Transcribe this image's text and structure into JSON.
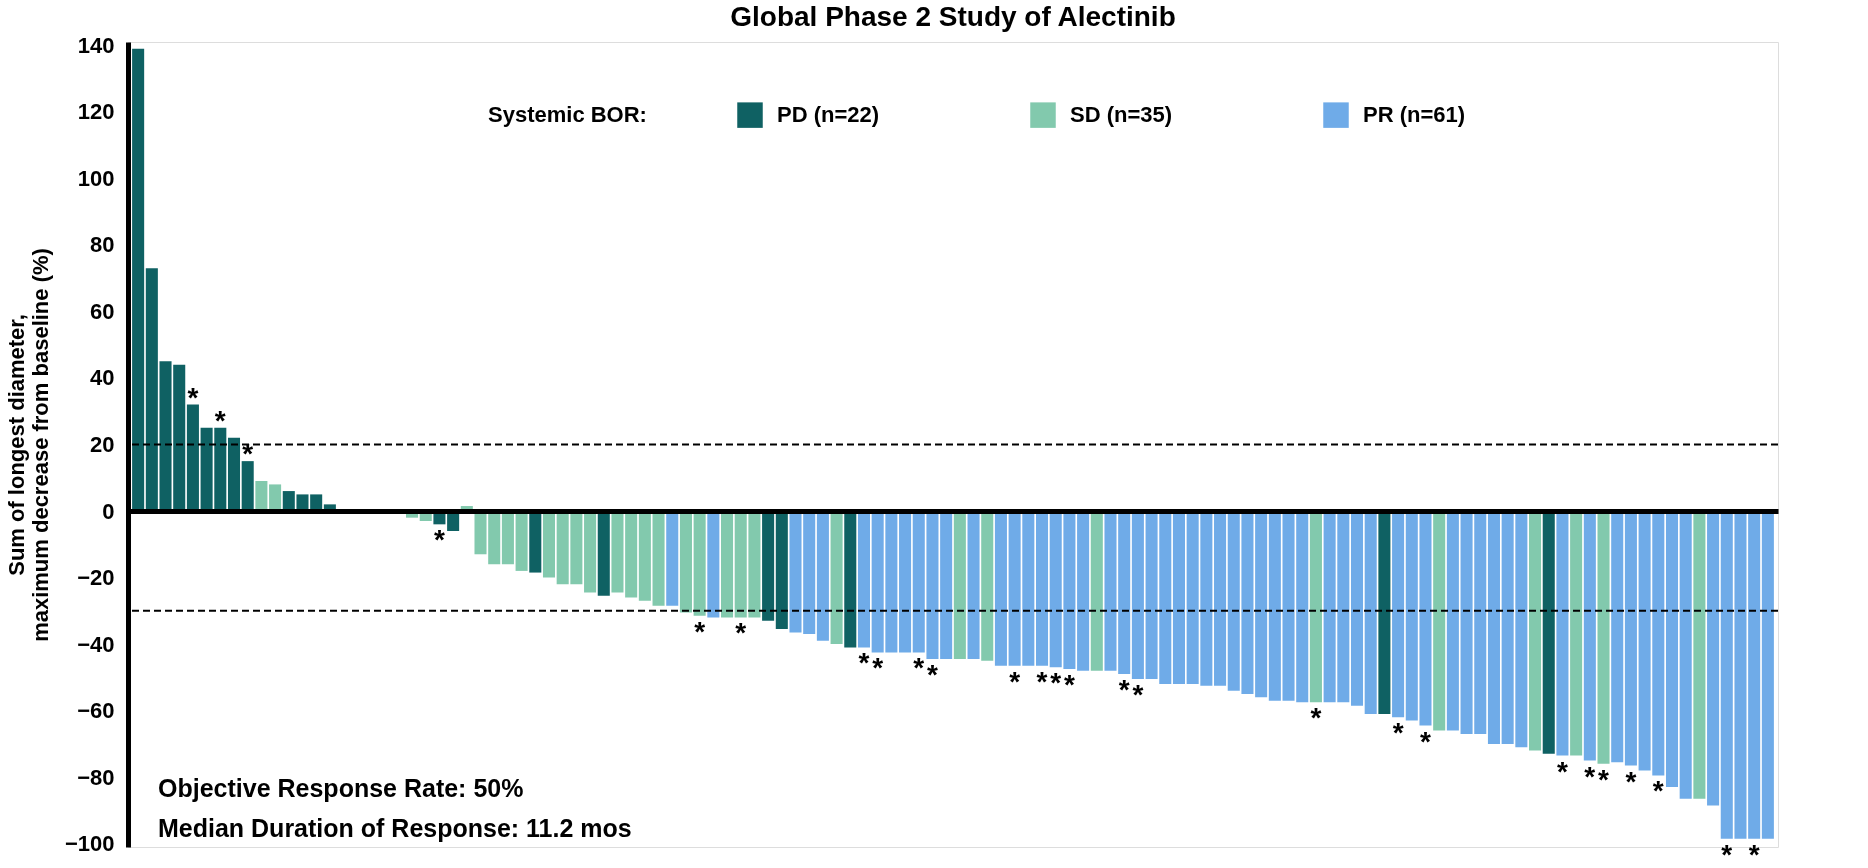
{
  "chart_data": {
    "type": "bar",
    "title": "Global Phase 2 Study of Alectinib",
    "ylabel": "Sum of longest diameter, maximum decrease from baseline (%)",
    "legend_title": "Systemic BOR:",
    "legend": "top",
    "tick_labels": "y",
    "ylim": [
      -101,
      141
    ],
    "yticks": [
      -100,
      -80,
      -60,
      -40,
      -20,
      0,
      20,
      40,
      60,
      80,
      100,
      120,
      140
    ],
    "categories": [
      null,
      null,
      null,
      null,
      null,
      null,
      null,
      null,
      null,
      null,
      null,
      null,
      null,
      null,
      null,
      null,
      null,
      null,
      null,
      null,
      null,
      null,
      null,
      null,
      null,
      null,
      null,
      null,
      null,
      null,
      null,
      null,
      null,
      null,
      null,
      null,
      null,
      null,
      null,
      null,
      null,
      null,
      null,
      null,
      null,
      null,
      null,
      null,
      null,
      null,
      null,
      null,
      null,
      null,
      null,
      null,
      null,
      null,
      null,
      null,
      null,
      null,
      null,
      null,
      null,
      null,
      null,
      null,
      null,
      null,
      null,
      null,
      null,
      null,
      null,
      null,
      null,
      null,
      null,
      null,
      null,
      null,
      null,
      null,
      null,
      null,
      null,
      null,
      null,
      null,
      null,
      null,
      null,
      null,
      null,
      null,
      null,
      null,
      null,
      null,
      null,
      null,
      null,
      null,
      null,
      null,
      null,
      null,
      null,
      null,
      null,
      null,
      null,
      null,
      null,
      null,
      null,
      null,
      null,
      null
    ],
    "series": [
      {
        "name": "PD (n=22)",
        "color": "#0f6163",
        "values": [
          139,
          73,
          45,
          44,
          32,
          25,
          25,
          22,
          15,
          null,
          null,
          6,
          5,
          5,
          2,
          null,
          null,
          null,
          null,
          null,
          null,
          null,
          -4,
          -6,
          null,
          null,
          null,
          null,
          null,
          -18.5,
          null,
          null,
          null,
          null,
          -25.5,
          null,
          null,
          null,
          null,
          null,
          null,
          null,
          null,
          null,
          null,
          null,
          -33,
          -35.5,
          null,
          null,
          null,
          null,
          -41,
          null,
          null,
          null,
          null,
          null,
          null,
          null,
          null,
          null,
          null,
          null,
          null,
          null,
          null,
          null,
          null,
          null,
          null,
          null,
          null,
          null,
          null,
          null,
          null,
          null,
          null,
          null,
          null,
          null,
          null,
          null,
          null,
          null,
          null,
          null,
          null,
          null,
          null,
          -61,
          null,
          null,
          null,
          null,
          null,
          null,
          null,
          null,
          null,
          null,
          null,
          -73,
          null,
          null,
          null,
          null,
          null,
          null,
          null,
          null,
          null,
          null,
          null,
          null,
          null,
          null,
          null,
          null
        ],
        "value_labels": [
          null,
          null,
          null,
          null,
          "*",
          null,
          "*",
          null,
          "*",
          null,
          null,
          null,
          null,
          null,
          null,
          null,
          null,
          null,
          null,
          null,
          null,
          null,
          "*",
          null,
          null,
          null,
          null,
          null,
          null,
          null,
          null,
          null,
          null,
          null,
          null,
          null,
          null,
          null,
          null,
          null,
          null,
          null,
          null,
          null,
          null,
          null,
          null,
          null,
          null,
          null,
          null,
          null,
          null,
          null,
          null,
          null,
          null,
          null,
          null,
          null,
          null,
          null,
          null,
          null,
          null,
          null,
          null,
          null,
          null,
          null,
          null,
          null,
          null,
          null,
          null,
          null,
          null,
          null,
          null,
          null,
          null,
          null,
          null,
          null,
          null,
          null,
          null,
          null,
          null,
          null,
          null,
          null,
          null,
          null,
          null,
          null,
          null,
          null,
          null,
          null,
          null,
          null,
          null,
          null,
          null,
          null,
          null,
          null,
          null,
          null,
          null,
          null,
          null,
          null,
          null,
          null,
          null,
          null,
          null,
          null
        ]
      },
      {
        "name": "SD (n=35)",
        "color": "#82c9ad",
        "values": [
          null,
          null,
          null,
          null,
          null,
          null,
          null,
          null,
          null,
          9,
          8,
          null,
          null,
          null,
          null,
          0,
          0,
          0,
          null,
          null,
          -2,
          -3,
          null,
          null,
          1.5,
          -13,
          -16,
          -16,
          -18,
          null,
          -20,
          -22,
          -22,
          -24.5,
          null,
          -24.5,
          -26,
          -27,
          -28.5,
          null,
          -30.5,
          -31.5,
          null,
          -32,
          -32,
          -32,
          null,
          null,
          null,
          null,
          null,
          -40,
          null,
          null,
          null,
          null,
          null,
          null,
          null,
          null,
          -44.5,
          null,
          -45,
          null,
          null,
          null,
          null,
          null,
          null,
          null,
          -48,
          null,
          null,
          null,
          null,
          null,
          null,
          null,
          null,
          null,
          null,
          null,
          null,
          null,
          null,
          null,
          -57.5,
          null,
          null,
          null,
          null,
          null,
          null,
          null,
          null,
          -66,
          null,
          null,
          null,
          null,
          null,
          null,
          -72,
          null,
          null,
          -73.5,
          null,
          -76,
          null,
          null,
          null,
          null,
          null,
          null,
          -86.5,
          null,
          null,
          null,
          null,
          null
        ],
        "value_labels": [
          null,
          null,
          null,
          null,
          null,
          null,
          null,
          null,
          null,
          null,
          null,
          null,
          null,
          null,
          null,
          null,
          null,
          null,
          null,
          null,
          null,
          null,
          null,
          null,
          null,
          null,
          null,
          null,
          null,
          null,
          null,
          null,
          null,
          null,
          null,
          null,
          null,
          null,
          null,
          null,
          null,
          "*",
          null,
          null,
          "*",
          null,
          null,
          null,
          null,
          null,
          null,
          null,
          null,
          null,
          null,
          null,
          null,
          null,
          null,
          null,
          null,
          null,
          null,
          null,
          null,
          null,
          null,
          null,
          null,
          null,
          null,
          null,
          null,
          null,
          null,
          null,
          null,
          null,
          null,
          null,
          null,
          null,
          null,
          null,
          null,
          null,
          "*",
          null,
          null,
          null,
          null,
          null,
          null,
          null,
          null,
          null,
          null,
          null,
          null,
          null,
          null,
          null,
          null,
          null,
          null,
          null,
          null,
          "*",
          null,
          null,
          null,
          null,
          null,
          null,
          null,
          null,
          null,
          null,
          null,
          null
        ]
      },
      {
        "name": "PR (n=61)",
        "color": "#6fabe8",
        "values": [
          null,
          null,
          null,
          null,
          null,
          null,
          null,
          null,
          null,
          null,
          null,
          null,
          null,
          null,
          null,
          null,
          null,
          null,
          null,
          null,
          null,
          null,
          null,
          null,
          null,
          null,
          null,
          null,
          null,
          null,
          null,
          null,
          null,
          null,
          null,
          null,
          null,
          null,
          null,
          -28.5,
          null,
          null,
          -32,
          null,
          null,
          null,
          null,
          null,
          -36.5,
          -37,
          -39,
          null,
          null,
          -41,
          -42.5,
          -42.5,
          -42.5,
          -42.5,
          -44.5,
          -44.5,
          null,
          -44.5,
          null,
          -46.5,
          -46.5,
          -46.5,
          -46.5,
          -47,
          -47.5,
          -48,
          null,
          -48,
          -49,
          -50.5,
          -50.5,
          -52,
          -52,
          -52,
          -52.5,
          -52.5,
          -54,
          -55,
          -56,
          -57,
          -57,
          -57.5,
          null,
          -57.5,
          -57.5,
          -58.5,
          -61,
          null,
          -62,
          -63,
          -64.5,
          null,
          -66,
          -67,
          -67,
          -70,
          -70,
          -71,
          null,
          null,
          -73.5,
          null,
          -75,
          null,
          -75.5,
          -76.5,
          -78,
          -79.5,
          -83,
          -86.5,
          null,
          -88.5,
          -98.5,
          -98.5,
          -98.5,
          -98.5
        ],
        "value_labels": [
          null,
          null,
          null,
          null,
          null,
          null,
          null,
          null,
          null,
          null,
          null,
          null,
          null,
          null,
          null,
          null,
          null,
          null,
          null,
          null,
          null,
          null,
          null,
          null,
          null,
          null,
          null,
          null,
          null,
          null,
          null,
          null,
          null,
          null,
          null,
          null,
          null,
          null,
          null,
          null,
          null,
          null,
          null,
          null,
          null,
          null,
          null,
          null,
          null,
          null,
          null,
          null,
          null,
          "*",
          "*",
          null,
          null,
          "*",
          "*",
          null,
          null,
          null,
          null,
          null,
          "*",
          null,
          "*",
          "*",
          "*",
          null,
          null,
          null,
          "*",
          "*",
          null,
          null,
          null,
          null,
          null,
          null,
          null,
          null,
          null,
          null,
          null,
          null,
          null,
          null,
          null,
          null,
          null,
          null,
          "*",
          null,
          "*",
          null,
          null,
          null,
          null,
          null,
          null,
          null,
          null,
          null,
          "*",
          null,
          "*",
          null,
          null,
          "*",
          null,
          "*",
          null,
          null,
          null,
          null,
          "*",
          null,
          "*",
          null
        ]
      }
    ],
    "ref_lines": [
      {
        "axis": "y",
        "value": 20,
        "line_style": "dashed",
        "color": "#000000"
      },
      {
        "axis": "y",
        "value": -30,
        "line_style": "dashed",
        "color": "#000000"
      }
    ],
    "annotations": [
      "Objective Response Rate:  50%",
      "Median Duration of Response:  11.2 mos"
    ]
  }
}
